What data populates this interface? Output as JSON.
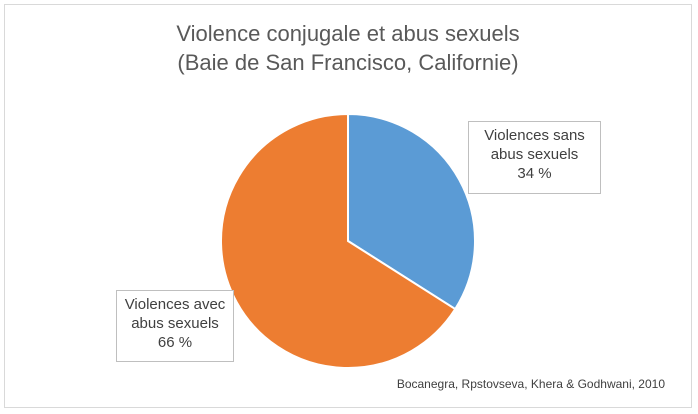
{
  "chart_data": {
    "type": "pie",
    "title": [
      "Violence conjugale et abus sexuels",
      "(Baie de San Francisco, Californie)"
    ],
    "slices": [
      {
        "label": [
          "Violences sans",
          "abus sexuels"
        ],
        "value": 34,
        "display": "34 %",
        "color": "#5b9bd5"
      },
      {
        "label": [
          "Violences avec",
          "abus sexuels"
        ],
        "value": 66,
        "display": "66 %",
        "color": "#ed7d31"
      }
    ],
    "source": "Bocanegra,  Rpstovseva, Khera & Godhwani, 2010"
  }
}
